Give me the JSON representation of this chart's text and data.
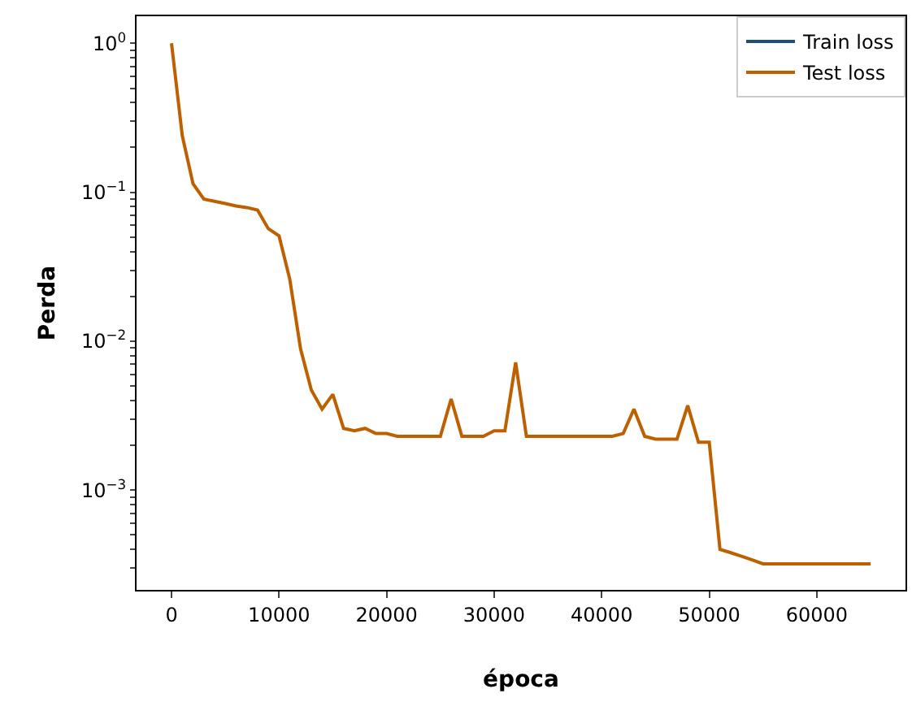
{
  "chart_data": {
    "type": "line",
    "xlabel": "época",
    "ylabel": "Perda",
    "log": "y",
    "grid": false,
    "legend": "top right",
    "line_style": "solid",
    "marker": "none",
    "x": [
      0,
      1000,
      2000,
      3000,
      4000,
      5000,
      6000,
      7000,
      8000,
      9000,
      10000,
      11000,
      12000,
      13000,
      14000,
      15000,
      16000,
      17000,
      18000,
      19000,
      20000,
      21000,
      22000,
      23000,
      24000,
      25000,
      26000,
      27000,
      28000,
      29000,
      30000,
      31000,
      32000,
      33000,
      34000,
      35000,
      36000,
      37000,
      38000,
      39000,
      40000,
      41000,
      42000,
      43000,
      44000,
      45000,
      46000,
      47000,
      48000,
      49000,
      50000,
      51000,
      52000,
      53000,
      54000,
      55000,
      56000,
      57000,
      58000,
      59000,
      60000,
      61000,
      62000,
      63000,
      64000,
      65000
    ],
    "series": [
      {
        "name": "Train loss",
        "color": "#1f4e79",
        "values": [
          null,
          null,
          null,
          null,
          null,
          null,
          null,
          null,
          null,
          null,
          null,
          null,
          null,
          null,
          null,
          null,
          null,
          null,
          null,
          null,
          null,
          null,
          null,
          null,
          null,
          null,
          null,
          null,
          null,
          null,
          null,
          null,
          null,
          null,
          null,
          null,
          null,
          null,
          null,
          null,
          null,
          null,
          null,
          null,
          null,
          null,
          null,
          null,
          null,
          null,
          null,
          null,
          null,
          null,
          null,
          null,
          null,
          null,
          null,
          null,
          null,
          null,
          null,
          null,
          null,
          null
        ]
      },
      {
        "name": "Test loss",
        "color": "#bf6000",
        "values": [
          1.0,
          0.24,
          0.114,
          0.09,
          0.087,
          0.084,
          0.081,
          0.079,
          0.076,
          0.057,
          0.051,
          0.026,
          0.0089,
          0.0047,
          0.0035,
          0.0044,
          0.0026,
          0.0025,
          0.0026,
          0.0024,
          0.0024,
          0.0023,
          0.0023,
          0.0023,
          0.0023,
          0.0023,
          0.0041,
          0.0023,
          0.0023,
          0.0023,
          0.0025,
          0.0025,
          0.0072,
          0.0023,
          0.0023,
          0.0023,
          0.0023,
          0.0023,
          0.0023,
          0.0023,
          0.0023,
          0.0023,
          0.0024,
          0.0035,
          0.0023,
          0.0022,
          0.0022,
          0.0022,
          0.0037,
          0.0021,
          0.0021,
          0.0004,
          0.00038,
          0.00036,
          0.00034,
          0.00032,
          0.00032,
          0.00032,
          0.00032,
          0.00032,
          0.00032,
          0.00032,
          0.00032,
          0.00032,
          0.00032,
          0.00032
        ]
      }
    ],
    "xlim": [
      -3250,
      68250
    ],
    "xticks": [
      0,
      10000,
      20000,
      30000,
      40000,
      50000,
      60000
    ],
    "ylim": [
      0.000214,
      1.52
    ],
    "yticks": [
      {
        "value": 0.0003,
        "label": null
      },
      {
        "value": 0.0004,
        "label": null
      },
      {
        "value": 0.0005,
        "label": null
      },
      {
        "value": 0.0006,
        "label": null
      },
      {
        "value": 0.0007,
        "label": null
      },
      {
        "value": 0.0008,
        "label": null
      },
      {
        "value": 0.0009,
        "label": null
      },
      {
        "value": 0.001,
        "label": "10$^{−3}$"
      },
      {
        "value": 0.002,
        "label": null
      },
      {
        "value": 0.003,
        "label": null
      },
      {
        "value": 0.004,
        "label": null
      },
      {
        "value": 0.005,
        "label": null
      },
      {
        "value": 0.006,
        "label": null
      },
      {
        "value": 0.007,
        "label": null
      },
      {
        "value": 0.008,
        "label": null
      },
      {
        "value": 0.009,
        "label": null
      },
      {
        "value": 0.01,
        "label": "10$^{−2}$"
      },
      {
        "value": 0.02,
        "label": null
      },
      {
        "value": 0.03,
        "label": null
      },
      {
        "value": 0.04,
        "label": null
      },
      {
        "value": 0.05,
        "label": null
      },
      {
        "value": 0.06,
        "label": null
      },
      {
        "value": 0.07,
        "label": null
      },
      {
        "value": 0.08,
        "label": null
      },
      {
        "value": 0.09,
        "label": null
      },
      {
        "value": 0.1,
        "label": "10$^{−1}$"
      },
      {
        "value": 0.2,
        "label": null
      },
      {
        "value": 0.3,
        "label": null
      },
      {
        "value": 0.4,
        "label": null
      },
      {
        "value": 0.5,
        "label": null
      },
      {
        "value": 0.6,
        "label": null
      },
      {
        "value": 0.7,
        "label": null
      },
      {
        "value": 0.8,
        "label": null
      },
      {
        "value": 0.9,
        "label": null
      },
      {
        "value": 1,
        "label": "10$^{0}$"
      }
    ]
  }
}
